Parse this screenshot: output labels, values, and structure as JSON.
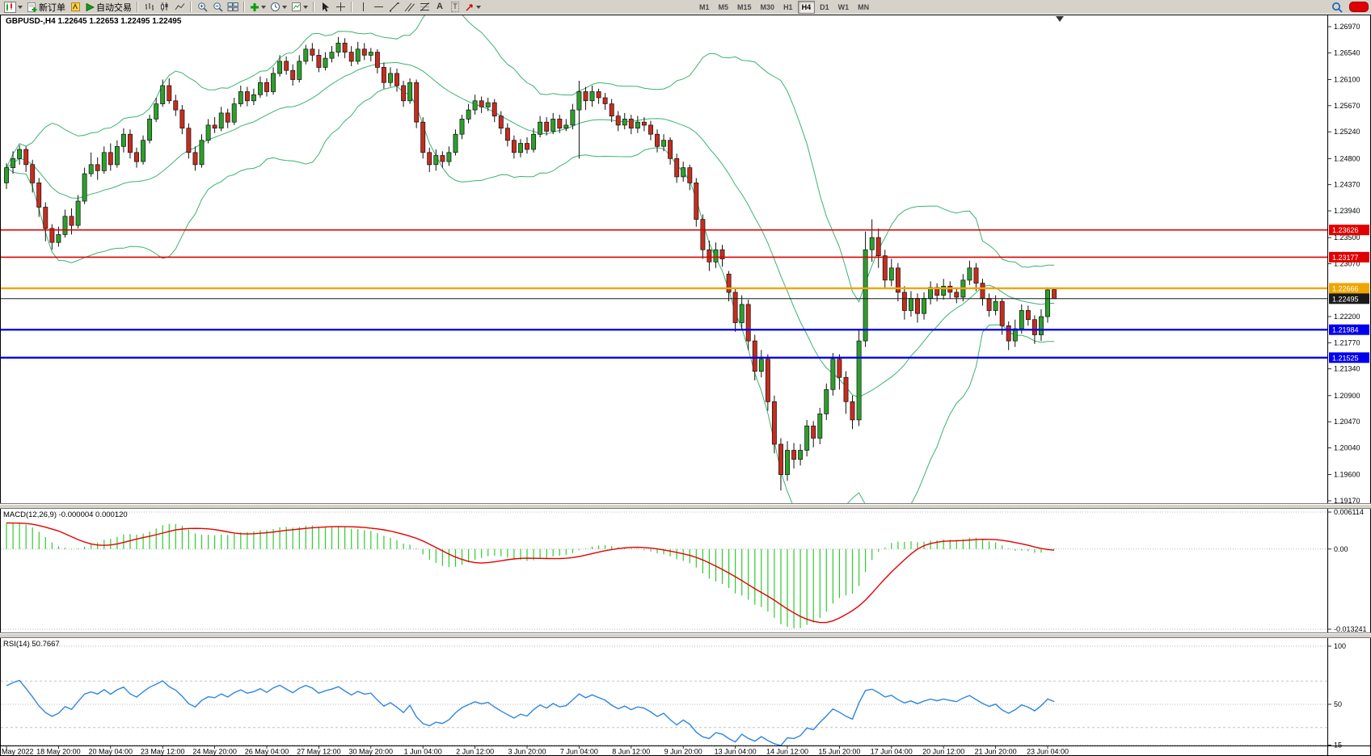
{
  "toolbar": {
    "new_order_label": "新订单",
    "autotrading_label": "自动交易",
    "timeframes": [
      "M1",
      "M5",
      "M15",
      "M30",
      "H1",
      "H4",
      "D1",
      "W1",
      "MN"
    ],
    "active_timeframe": "H4"
  },
  "chart": {
    "title_label": "GBPUSD-,H4 1.22645 1.22653 1.22495 1.22495"
  },
  "chart_data": {
    "type": "candlestick",
    "symbol": "GBPUSD-",
    "timeframe": "H4",
    "ohlc_display": {
      "open": "1.22645",
      "high": "1.22653",
      "low": "1.22495",
      "close": "1.22495"
    },
    "visible_price_range": [
      1.1913,
      1.2717
    ],
    "y_labels": [
      "1.26970",
      "1.26540",
      "1.26100",
      "1.25670",
      "1.25240",
      "1.24800",
      "1.24370",
      "1.23940",
      "1.23500",
      "1.23070",
      "1.22200",
      "1.21770",
      "1.21340",
      "1.20900",
      "1.20470",
      "1.20040",
      "1.19600",
      "1.19170"
    ],
    "x_labels": [
      "May 2022",
      "18 May 20:00",
      "20 May 04:00",
      "23 May 12:00",
      "24 May 20:00",
      "26 May 04:00",
      "27 May 12:00",
      "30 May 20:00",
      "1 Jun 04:00",
      "2 Jun 12:00",
      "3 Jun 20:00",
      "7 Jun 04:00",
      "8 Jun 12:00",
      "9 Jun 20:00",
      "13 Jun 04:00",
      "14 Jun 12:00",
      "15 Jun 20:00",
      "17 Jun 04:00",
      "20 Jun 12:00",
      "21 Jun 20:00",
      "23 Jun 04:00"
    ],
    "horizontal_lines": [
      {
        "price": 1.23626,
        "label": "1.23626",
        "color": "#e00000",
        "width": 1.6
      },
      {
        "price": 1.23177,
        "label": "1.23177",
        "color": "#e00000",
        "width": 1.6
      },
      {
        "price": 1.22666,
        "label": "1.22666",
        "color": "#efa500",
        "width": 2.4
      },
      {
        "price": 1.22495,
        "label": "1.22495",
        "color": "#1a1a1a",
        "width": 1.0
      },
      {
        "price": 1.21984,
        "label": "1.21984",
        "color": "#0000ee",
        "width": 2.4
      },
      {
        "price": 1.21525,
        "label": "1.21525",
        "color": "#0000ee",
        "width": 2.4
      }
    ],
    "bollinger": {
      "period": 20,
      "deviation": 2,
      "color": "#3CB371"
    },
    "candles": [
      [
        1.244,
        1.2472,
        1.243,
        1.2465
      ],
      [
        1.2465,
        1.2492,
        1.2455,
        1.248
      ],
      [
        1.248,
        1.2502,
        1.247,
        1.2495
      ],
      [
        1.2495,
        1.25,
        1.2458,
        1.247
      ],
      [
        1.247,
        1.2478,
        1.2424,
        1.244
      ],
      [
        1.244,
        1.2448,
        1.2384,
        1.24
      ],
      [
        1.24,
        1.2408,
        1.2344,
        1.2365
      ],
      [
        1.2365,
        1.2372,
        1.233,
        1.2342
      ],
      [
        1.2342,
        1.2368,
        1.2335,
        1.2355
      ],
      [
        1.2355,
        1.2396,
        1.235,
        1.2385
      ],
      [
        1.2385,
        1.2398,
        1.2355,
        1.237
      ],
      [
        1.237,
        1.242,
        1.2365,
        1.241
      ],
      [
        1.241,
        1.2465,
        1.2405,
        1.2455
      ],
      [
        1.2455,
        1.249,
        1.245,
        1.247
      ],
      [
        1.247,
        1.2482,
        1.2445,
        1.246
      ],
      [
        1.246,
        1.25,
        1.2455,
        1.249
      ],
      [
        1.249,
        1.2505,
        1.246,
        1.247
      ],
      [
        1.247,
        1.251,
        1.2465,
        1.25
      ],
      [
        1.25,
        1.253,
        1.249,
        1.252
      ],
      [
        1.252,
        1.2528,
        1.248,
        1.249
      ],
      [
        1.249,
        1.2498,
        1.2465,
        1.2475
      ],
      [
        1.2475,
        1.2518,
        1.247,
        1.251
      ],
      [
        1.251,
        1.2552,
        1.2505,
        1.2545
      ],
      [
        1.2545,
        1.258,
        1.254,
        1.257
      ],
      [
        1.257,
        1.261,
        1.2565,
        1.26
      ],
      [
        1.26,
        1.2612,
        1.257,
        1.2575
      ],
      [
        1.2575,
        1.2585,
        1.255,
        1.256
      ],
      [
        1.256,
        1.2568,
        1.252,
        1.253
      ],
      [
        1.253,
        1.2538,
        1.248,
        1.249
      ],
      [
        1.249,
        1.25,
        1.246,
        1.247
      ],
      [
        1.247,
        1.252,
        1.2465,
        1.251
      ],
      [
        1.251,
        1.2545,
        1.2505,
        1.2535
      ],
      [
        1.2535,
        1.2548,
        1.2522,
        1.253
      ],
      [
        1.253,
        1.2565,
        1.2525,
        1.2555
      ],
      [
        1.2555,
        1.2562,
        1.253,
        1.254
      ],
      [
        1.254,
        1.258,
        1.2535,
        1.257
      ],
      [
        1.257,
        1.26,
        1.2565,
        1.259
      ],
      [
        1.259,
        1.2598,
        1.2566,
        1.2575
      ],
      [
        1.2575,
        1.2595,
        1.2568,
        1.2585
      ],
      [
        1.2585,
        1.2615,
        1.258,
        1.2605
      ],
      [
        1.2605,
        1.2612,
        1.2582,
        1.259
      ],
      [
        1.259,
        1.263,
        1.2585,
        1.262
      ],
      [
        1.262,
        1.265,
        1.2615,
        1.264
      ],
      [
        1.264,
        1.2648,
        1.2618,
        1.2625
      ],
      [
        1.2625,
        1.2635,
        1.26,
        1.261
      ],
      [
        1.261,
        1.265,
        1.2605,
        1.264
      ],
      [
        1.264,
        1.2667,
        1.2635,
        1.266
      ],
      [
        1.266,
        1.267,
        1.264,
        1.265
      ],
      [
        1.265,
        1.266,
        1.2622,
        1.263
      ],
      [
        1.263,
        1.2655,
        1.2625,
        1.2645
      ],
      [
        1.2645,
        1.2665,
        1.2638,
        1.2655
      ],
      [
        1.2655,
        1.268,
        1.2648,
        1.267
      ],
      [
        1.267,
        1.2678,
        1.2645,
        1.2655
      ],
      [
        1.2655,
        1.2665,
        1.2632,
        1.264
      ],
      [
        1.264,
        1.2672,
        1.2635,
        1.266
      ],
      [
        1.266,
        1.267,
        1.2642,
        1.265
      ],
      [
        1.265,
        1.2662,
        1.264,
        1.2655
      ],
      [
        1.2655,
        1.266,
        1.262,
        1.263
      ],
      [
        1.263,
        1.2638,
        1.2595,
        1.2605
      ],
      [
        1.2605,
        1.263,
        1.2598,
        1.262
      ],
      [
        1.262,
        1.2628,
        1.259,
        1.26
      ],
      [
        1.26,
        1.2608,
        1.2565,
        1.2575
      ],
      [
        1.2575,
        1.2612,
        1.257,
        1.2605
      ],
      [
        1.2605,
        1.261,
        1.253,
        1.254
      ],
      [
        1.254,
        1.2548,
        1.248,
        1.249
      ],
      [
        1.249,
        1.2498,
        1.2458,
        1.247
      ],
      [
        1.247,
        1.2495,
        1.246,
        1.2485
      ],
      [
        1.2485,
        1.2492,
        1.2465,
        1.2475
      ],
      [
        1.2475,
        1.25,
        1.2468,
        1.249
      ],
      [
        1.249,
        1.2528,
        1.2485,
        1.252
      ],
      [
        1.252,
        1.2552,
        1.2512,
        1.2545
      ],
      [
        1.2545,
        1.257,
        1.2538,
        1.256
      ],
      [
        1.256,
        1.2585,
        1.2552,
        1.2575
      ],
      [
        1.2575,
        1.2582,
        1.2555,
        1.2565
      ],
      [
        1.2565,
        1.258,
        1.2558,
        1.2572
      ],
      [
        1.2572,
        1.2578,
        1.254,
        1.255
      ],
      [
        1.255,
        1.2558,
        1.252,
        1.253
      ],
      [
        1.253,
        1.2538,
        1.25,
        1.251
      ],
      [
        1.251,
        1.2518,
        1.248,
        1.249
      ],
      [
        1.249,
        1.2512,
        1.2482,
        1.2505
      ],
      [
        1.2505,
        1.2515,
        1.2488,
        1.2495
      ],
      [
        1.2495,
        1.253,
        1.249,
        1.252
      ],
      [
        1.252,
        1.255,
        1.2515,
        1.254
      ],
      [
        1.254,
        1.2548,
        1.2518,
        1.2525
      ],
      [
        1.2525,
        1.2555,
        1.252,
        1.2545
      ],
      [
        1.2545,
        1.2552,
        1.2522,
        1.253
      ],
      [
        1.253,
        1.2545,
        1.2525,
        1.2535
      ],
      [
        1.2535,
        1.257,
        1.2528,
        1.256
      ],
      [
        1.256,
        1.2608,
        1.248,
        1.259
      ],
      [
        1.259,
        1.2598,
        1.256,
        1.2575
      ],
      [
        1.2575,
        1.26,
        1.2565,
        1.259
      ],
      [
        1.259,
        1.2595,
        1.257,
        1.258
      ],
      [
        1.258,
        1.2588,
        1.256,
        1.257
      ],
      [
        1.257,
        1.2578,
        1.254,
        1.255
      ],
      [
        1.255,
        1.2558,
        1.2525,
        1.2535
      ],
      [
        1.2535,
        1.2555,
        1.2528,
        1.2545
      ],
      [
        1.2545,
        1.2552,
        1.252,
        1.253
      ],
      [
        1.253,
        1.255,
        1.2522,
        1.254
      ],
      [
        1.254,
        1.2548,
        1.2525,
        1.2535
      ],
      [
        1.2535,
        1.2542,
        1.251,
        1.252
      ],
      [
        1.252,
        1.2528,
        1.249,
        1.25
      ],
      [
        1.25,
        1.252,
        1.2492,
        1.251
      ],
      [
        1.251,
        1.2515,
        1.247,
        1.248
      ],
      [
        1.248,
        1.2488,
        1.244,
        1.245
      ],
      [
        1.245,
        1.2475,
        1.2442,
        1.2465
      ],
      [
        1.2465,
        1.247,
        1.2428,
        1.244
      ],
      [
        1.244,
        1.2448,
        1.2368,
        1.238
      ],
      [
        1.238,
        1.2388,
        1.2315,
        1.233
      ],
      [
        1.233,
        1.2345,
        1.2295,
        1.231
      ],
      [
        1.231,
        1.2342,
        1.23,
        1.233
      ],
      [
        1.233,
        1.2338,
        1.2302,
        1.2315
      ],
      [
        1.229,
        1.2295,
        1.2245,
        1.226
      ],
      [
        1.226,
        1.2268,
        1.2195,
        1.221
      ],
      [
        1.221,
        1.2255,
        1.22,
        1.224
      ],
      [
        1.224,
        1.2248,
        1.2165,
        1.218
      ],
      [
        1.218,
        1.219,
        1.2115,
        1.213
      ],
      [
        1.213,
        1.2165,
        1.212,
        1.215
      ],
      [
        1.215,
        1.2158,
        1.2065,
        1.208
      ],
      [
        1.208,
        1.209,
        1.1995,
        1.201
      ],
      [
        1.201,
        1.202,
        1.1934,
        1.196
      ],
      [
        1.196,
        1.2015,
        1.195,
        1.2
      ],
      [
        1.2,
        1.2012,
        1.197,
        1.1985
      ],
      [
        1.1985,
        1.201,
        1.1975,
        1.2
      ],
      [
        1.2,
        1.205,
        1.199,
        1.204
      ],
      [
        1.204,
        1.2048,
        1.2005,
        1.202
      ],
      [
        1.202,
        1.207,
        1.201,
        1.206
      ],
      [
        1.206,
        1.211,
        1.205,
        1.21
      ],
      [
        1.21,
        1.216,
        1.209,
        1.215
      ],
      [
        1.215,
        1.2158,
        1.21,
        1.212
      ],
      [
        1.212,
        1.213,
        1.206,
        1.208
      ],
      [
        1.208,
        1.209,
        1.2035,
        1.205
      ],
      [
        1.205,
        1.22,
        1.204,
        1.218
      ],
      [
        1.218,
        1.236,
        1.217,
        1.233
      ],
      [
        1.233,
        1.238,
        1.231,
        1.235
      ],
      [
        1.235,
        1.2365,
        1.23,
        1.232
      ],
      [
        1.232,
        1.233,
        1.2265,
        1.228
      ],
      [
        1.228,
        1.2315,
        1.227,
        1.23
      ],
      [
        1.23,
        1.2308,
        1.2245,
        1.226
      ],
      [
        1.226,
        1.227,
        1.2215,
        1.223
      ],
      [
        1.223,
        1.2262,
        1.222,
        1.225
      ],
      [
        1.225,
        1.2258,
        1.221,
        1.2225
      ],
      [
        1.2225,
        1.226,
        1.2215,
        1.225
      ],
      [
        1.225,
        1.2278,
        1.224,
        1.2268
      ],
      [
        1.2268,
        1.2275,
        1.2245,
        1.2255
      ],
      [
        1.2255,
        1.2282,
        1.2248,
        1.227
      ],
      [
        1.227,
        1.2278,
        1.225,
        1.226
      ],
      [
        1.226,
        1.2268,
        1.2242,
        1.2252
      ],
      [
        1.2252,
        1.229,
        1.2245,
        1.228
      ],
      [
        1.228,
        1.2312,
        1.2272,
        1.23
      ],
      [
        1.23,
        1.2308,
        1.2262,
        1.2275
      ],
      [
        1.2275,
        1.2282,
        1.2238,
        1.225
      ],
      [
        1.225,
        1.2258,
        1.222,
        1.223
      ],
      [
        1.223,
        1.2255,
        1.2222,
        1.2245
      ],
      [
        1.2245,
        1.225,
        1.219,
        1.2205
      ],
      [
        1.2205,
        1.2212,
        1.2165,
        1.218
      ],
      [
        1.218,
        1.2215,
        1.217,
        1.22
      ],
      [
        1.22,
        1.224,
        1.2192,
        1.223
      ],
      [
        1.223,
        1.2238,
        1.2205,
        1.2215
      ],
      [
        1.2215,
        1.2222,
        1.2175,
        1.219
      ],
      [
        1.219,
        1.2232,
        1.218,
        1.222
      ],
      [
        1.222,
        1.2268,
        1.221,
        1.2264
      ],
      [
        1.22645,
        1.22653,
        1.22495,
        1.22495
      ]
    ]
  },
  "macd_panel": {
    "label": "MACD(12,26,9) -0.000004 0.000120",
    "fast": 12,
    "slow": 26,
    "signal": 9,
    "value": "-0.000004",
    "signal_value": "0.000120",
    "max": 0.006114,
    "min": -0.013241,
    "axis": [
      {
        "text": "0.006114",
        "v": 0.006114
      },
      {
        "text": "0.00",
        "v": 0
      },
      {
        "text": "-0.013241",
        "v": -0.013241
      }
    ],
    "histogram_color": "#2fcc2f",
    "signal_color": "#e60000"
  },
  "rsi_panel": {
    "label": "RSI(14) 50.7667",
    "period": 14,
    "value": "50.7667",
    "axis": [
      {
        "text": "100",
        "v": 100
      },
      {
        "text": "50",
        "v": 50
      },
      {
        "text": "15",
        "v": 15
      }
    ],
    "levels": [
      70,
      30
    ],
    "line_color": "#2e86e0"
  },
  "colors": {
    "bull": "#2ca02c",
    "bear": "#c62d1f",
    "wick": "#111111",
    "background": "#ffffff",
    "toolbar_bg": "#d6d2ca",
    "bands": "#3CB371"
  }
}
